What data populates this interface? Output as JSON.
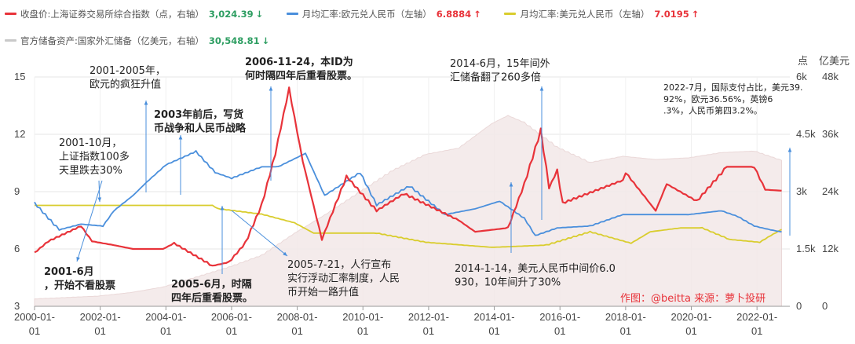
{
  "legend": [
    {
      "label": "收盘价:上海证券交易所综合指数（点，右轴）",
      "value": "3,024.39",
      "arrow": "↓",
      "trend": "down",
      "color": "#e8333a"
    },
    {
      "label": "月均汇率:欧元兑人民币（左轴）",
      "value": "6.8884",
      "arrow": "↑",
      "trend": "up",
      "color": "#4a8fdc"
    },
    {
      "label": "月均汇率:美元兑人民币（左轴）",
      "value": "7.0195",
      "arrow": "↑",
      "trend": "up",
      "color": "#d9cd2e"
    },
    {
      "label": "官方储备资产:国家外汇储备（亿美元，右轴）",
      "value": "30,548.81",
      "arrow": "↓",
      "trend": "down",
      "color": "#c9c9c9"
    }
  ],
  "chart_data": {
    "type": "line",
    "x_range": [
      "2000-01-01",
      "2023-01-01"
    ],
    "x_ticks": [
      "2000-01-01",
      "2002-01-01",
      "2004-01-01",
      "2006-01-01",
      "2008-01-01",
      "2010-01-01",
      "2012-01-01",
      "2014-01-01",
      "2016-01-01",
      "2018-01-01",
      "2020-01-01",
      "2022-01-01"
    ],
    "left_axis": {
      "min": 3,
      "max": 15,
      "ticks": [
        "3",
        "6",
        "9",
        "12",
        "15"
      ]
    },
    "right_axis_index": {
      "unit": "点",
      "min": 0,
      "max": 6000,
      "ticks": [
        "0",
        "1.5k",
        "3k",
        "4.5k",
        "6k"
      ]
    },
    "right_axis_reserves": {
      "unit": "亿美元",
      "min": 0,
      "max": 48000,
      "ticks": [
        "0",
        "12k",
        "24k",
        "36k",
        "48k"
      ]
    },
    "grid": true,
    "legend_position": "top",
    "series": [
      {
        "name": "收盘价:上海证券交易所综合指数（点，右轴）",
        "axis": "index",
        "color": "#e8333a",
        "points": [
          [
            "2000-01",
            1400
          ],
          [
            "2000-06",
            1700
          ],
          [
            "2001-06",
            2100
          ],
          [
            "2001-10",
            1700
          ],
          [
            "2002-06",
            1600
          ],
          [
            "2003-01",
            1500
          ],
          [
            "2003-12",
            1500
          ],
          [
            "2004-04",
            1650
          ],
          [
            "2005-06",
            1060
          ],
          [
            "2005-12",
            1150
          ],
          [
            "2006-06",
            1650
          ],
          [
            "2006-12",
            2650
          ],
          [
            "2007-05",
            4000
          ],
          [
            "2007-10",
            5700
          ],
          [
            "2008-03",
            3800
          ],
          [
            "2008-10",
            1750
          ],
          [
            "2009-07",
            3400
          ],
          [
            "2010-06",
            2500
          ],
          [
            "2011-04",
            2950
          ],
          [
            "2012-12",
            2250
          ],
          [
            "2013-06",
            1950
          ],
          [
            "2014-06",
            2050
          ],
          [
            "2014-12",
            3200
          ],
          [
            "2015-06",
            4600
          ],
          [
            "2015-09",
            3100
          ],
          [
            "2015-12",
            3550
          ],
          [
            "2016-02",
            2700
          ],
          [
            "2017-12",
            3300
          ],
          [
            "2018-01",
            3500
          ],
          [
            "2018-12",
            2500
          ],
          [
            "2019-04",
            3200
          ],
          [
            "2020-03",
            2750
          ],
          [
            "2021-02",
            3650
          ],
          [
            "2021-12",
            3650
          ],
          [
            "2022-04",
            3050
          ],
          [
            "2022-10",
            3024
          ]
        ]
      },
      {
        "name": "月均汇率:欧元兑人民币（左轴）",
        "axis": "left",
        "color": "#4a8fdc",
        "points": [
          [
            "2000-01",
            8.4
          ],
          [
            "2000-10",
            7.0
          ],
          [
            "2001-06",
            7.3
          ],
          [
            "2002-02",
            7.2
          ],
          [
            "2002-06",
            8.0
          ],
          [
            "2003-01",
            8.8
          ],
          [
            "2003-06",
            9.5
          ],
          [
            "2004-01",
            10.4
          ],
          [
            "2004-12",
            11.1
          ],
          [
            "2005-07",
            10.0
          ],
          [
            "2006-01",
            9.7
          ],
          [
            "2006-12",
            10.3
          ],
          [
            "2007-06",
            10.3
          ],
          [
            "2008-04",
            11.0
          ],
          [
            "2008-11",
            8.8
          ],
          [
            "2009-12",
            10.0
          ],
          [
            "2010-06",
            8.3
          ],
          [
            "2011-06",
            9.3
          ],
          [
            "2012-07",
            7.8
          ],
          [
            "2013-06",
            8.1
          ],
          [
            "2014-03",
            8.5
          ],
          [
            "2014-12",
            7.6
          ],
          [
            "2015-04",
            6.7
          ],
          [
            "2015-12",
            7.1
          ],
          [
            "2016-12",
            7.2
          ],
          [
            "2017-12",
            7.8
          ],
          [
            "2018-03",
            7.8
          ],
          [
            "2018-12",
            7.8
          ],
          [
            "2019-12",
            7.8
          ],
          [
            "2020-06",
            7.9
          ],
          [
            "2020-12",
            8.0
          ],
          [
            "2021-06",
            7.7
          ],
          [
            "2021-12",
            7.2
          ],
          [
            "2022-06",
            7.0
          ],
          [
            "2022-10",
            6.89
          ]
        ]
      },
      {
        "name": "月均汇率:美元兑人民币（左轴）",
        "axis": "left",
        "color": "#d9cd2e",
        "points": [
          [
            "2000-01",
            8.28
          ],
          [
            "2005-06",
            8.28
          ],
          [
            "2005-08",
            8.11
          ],
          [
            "2006-12",
            7.82
          ],
          [
            "2007-12",
            7.37
          ],
          [
            "2008-07",
            6.83
          ],
          [
            "2010-06",
            6.83
          ],
          [
            "2011-12",
            6.35
          ],
          [
            "2013-12",
            6.09
          ],
          [
            "2014-01",
            6.09
          ],
          [
            "2015-08",
            6.2
          ],
          [
            "2016-12",
            6.9
          ],
          [
            "2018-03",
            6.3
          ],
          [
            "2018-10",
            6.9
          ],
          [
            "2019-09",
            7.1
          ],
          [
            "2020-05",
            7.1
          ],
          [
            "2021-03",
            6.5
          ],
          [
            "2022-02",
            6.35
          ],
          [
            "2022-06",
            6.7
          ],
          [
            "2022-10",
            7.02
          ]
        ]
      },
      {
        "name": "官方储备资产:国家外汇储备（亿美元，右轴）",
        "axis": "reserves",
        "color": "#c9c9c9",
        "points": [
          [
            "2000-01",
            1547
          ],
          [
            "2001-12",
            2122
          ],
          [
            "2002-12",
            2864
          ],
          [
            "2003-12",
            4033
          ],
          [
            "2004-12",
            6099
          ],
          [
            "2005-12",
            8189
          ],
          [
            "2006-12",
            10663
          ],
          [
            "2007-12",
            15282
          ],
          [
            "2008-12",
            19460
          ],
          [
            "2009-12",
            23992
          ],
          [
            "2010-12",
            28473
          ],
          [
            "2011-12",
            31811
          ],
          [
            "2012-12",
            33116
          ],
          [
            "2013-12",
            38213
          ],
          [
            "2014-06",
            39932
          ],
          [
            "2014-12",
            38430
          ],
          [
            "2015-12",
            33304
          ],
          [
            "2016-12",
            30105
          ],
          [
            "2017-12",
            31399
          ],
          [
            "2018-12",
            30727
          ],
          [
            "2019-12",
            31079
          ],
          [
            "2020-12",
            32165
          ],
          [
            "2021-12",
            32502
          ],
          [
            "2022-10",
            30548
          ]
        ]
      }
    ]
  },
  "annotations": {
    "a1": "2001-6月，开始不看股票",
    "a2": "2001-10月，上证指数100多天里跌去30%",
    "a3": "2001-2005年，欧元的疯狂升值",
    "a4": "2003年前后，写货币战争和人民币战略",
    "a5": "2005-6月，时隔四年后重看股票。",
    "a6": "2006-11-24，本ID为何时隔四年后重看股票。",
    "a7": "2005-7-21，人行宣布实行浮动汇率制度，人民币开始一路升值",
    "a8": "2014-6月，15年间外汇储备翻了260多倍",
    "a9": "2014-1-14，美元人民币中间价6.0930，10年间升了30%",
    "a10": "2022-7月，国际支付占比，美元39.92%，欧元36.56%，英镑6.3%，人民币第四3.2%。",
    "credit": "作图：@beitta 来源：萝卜投研"
  }
}
